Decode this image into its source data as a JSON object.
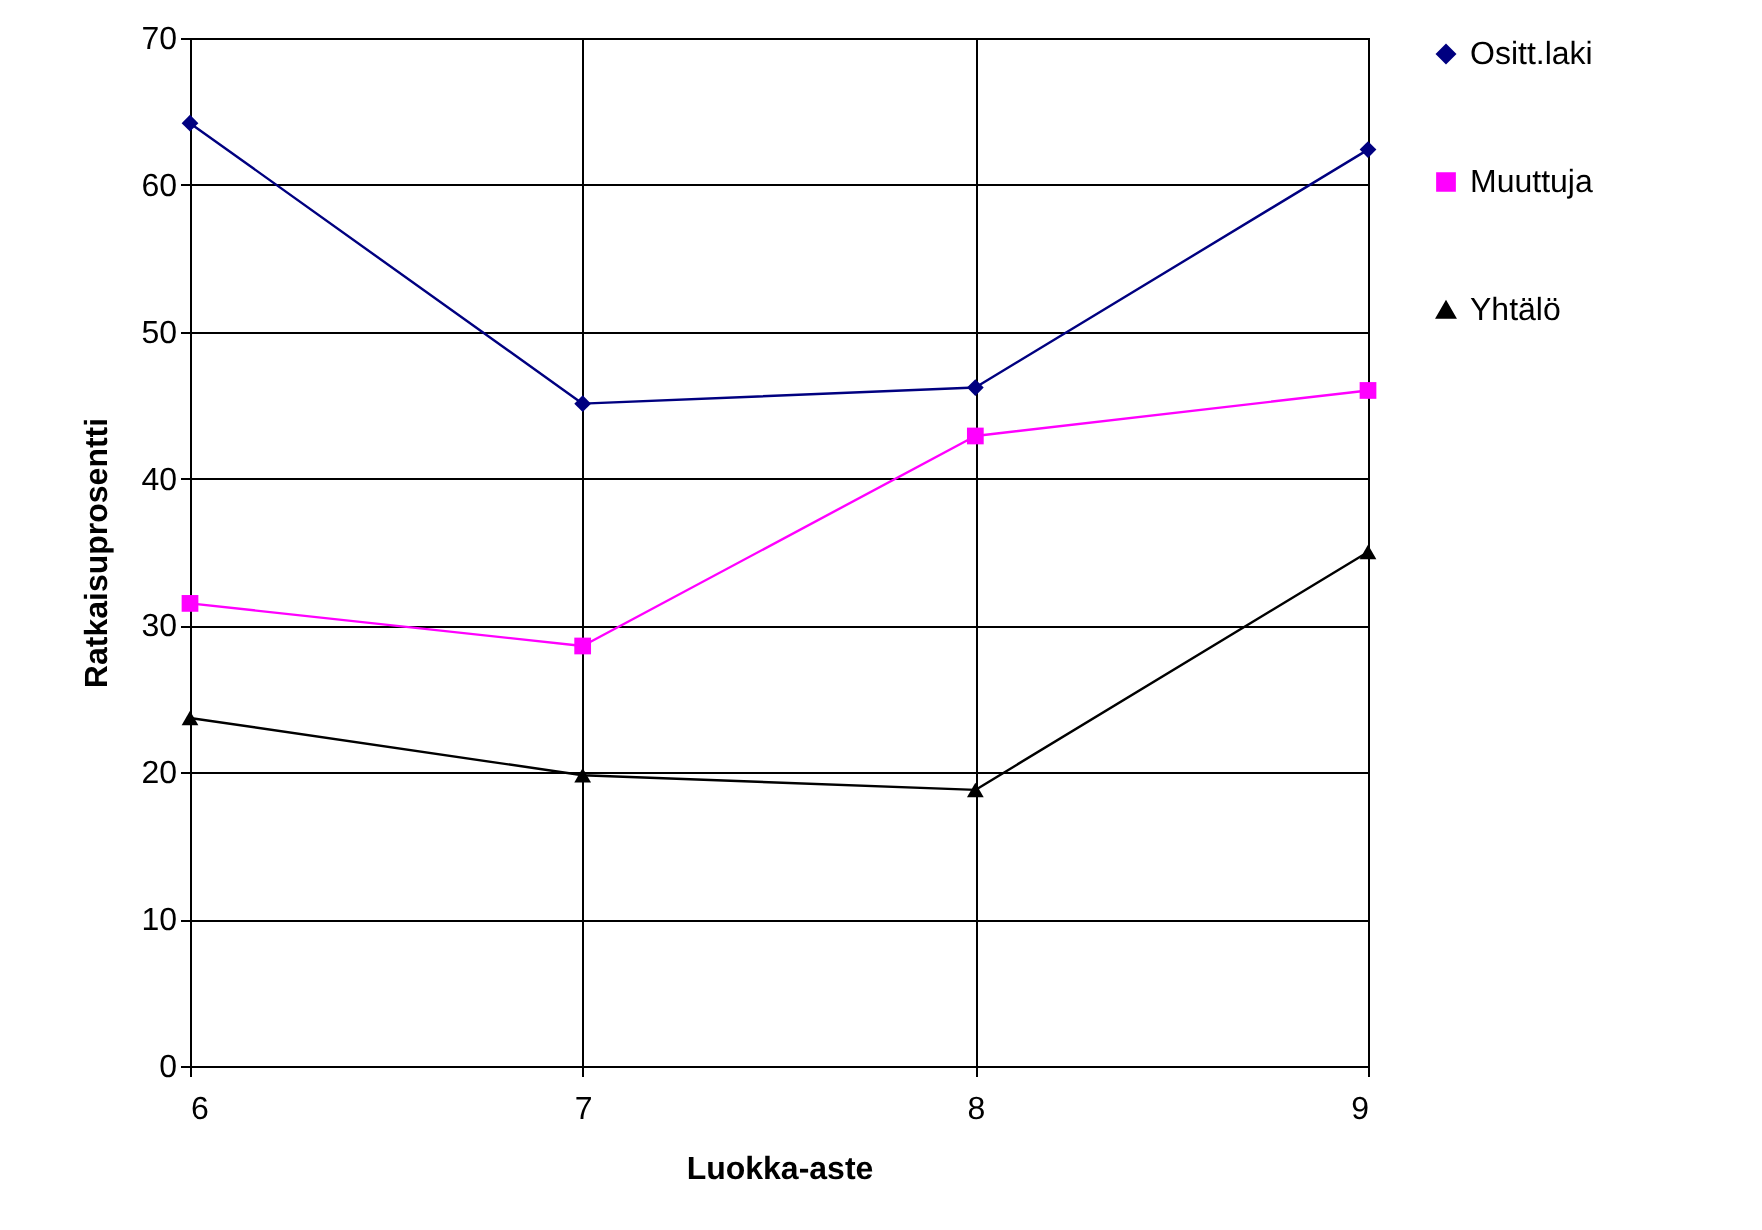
{
  "chart_data": {
    "type": "line",
    "xlabel": "Luokka-aste",
    "ylabel": "Ratkaisuprosentti",
    "x": [
      6,
      7,
      8,
      9
    ],
    "xlim": [
      6,
      9
    ],
    "xticks": [
      6,
      7,
      8,
      9
    ],
    "ylim": [
      0,
      70
    ],
    "yticks": [
      0,
      10,
      20,
      30,
      40,
      50,
      60,
      70
    ],
    "grid": true,
    "legend": "right",
    "series": [
      {
        "name": "Ositt.laki",
        "color": "#000080",
        "marker": "diamond",
        "values": [
          64.2,
          45.1,
          46.2,
          62.4
        ]
      },
      {
        "name": "Muuttuja",
        "color": "#ff00ff",
        "marker": "square",
        "values": [
          31.5,
          28.6,
          42.9,
          46.0
        ]
      },
      {
        "name": "Yhtälö",
        "color": "#000000",
        "marker": "triangle",
        "values": [
          23.7,
          19.8,
          18.8,
          35.0
        ]
      }
    ]
  }
}
